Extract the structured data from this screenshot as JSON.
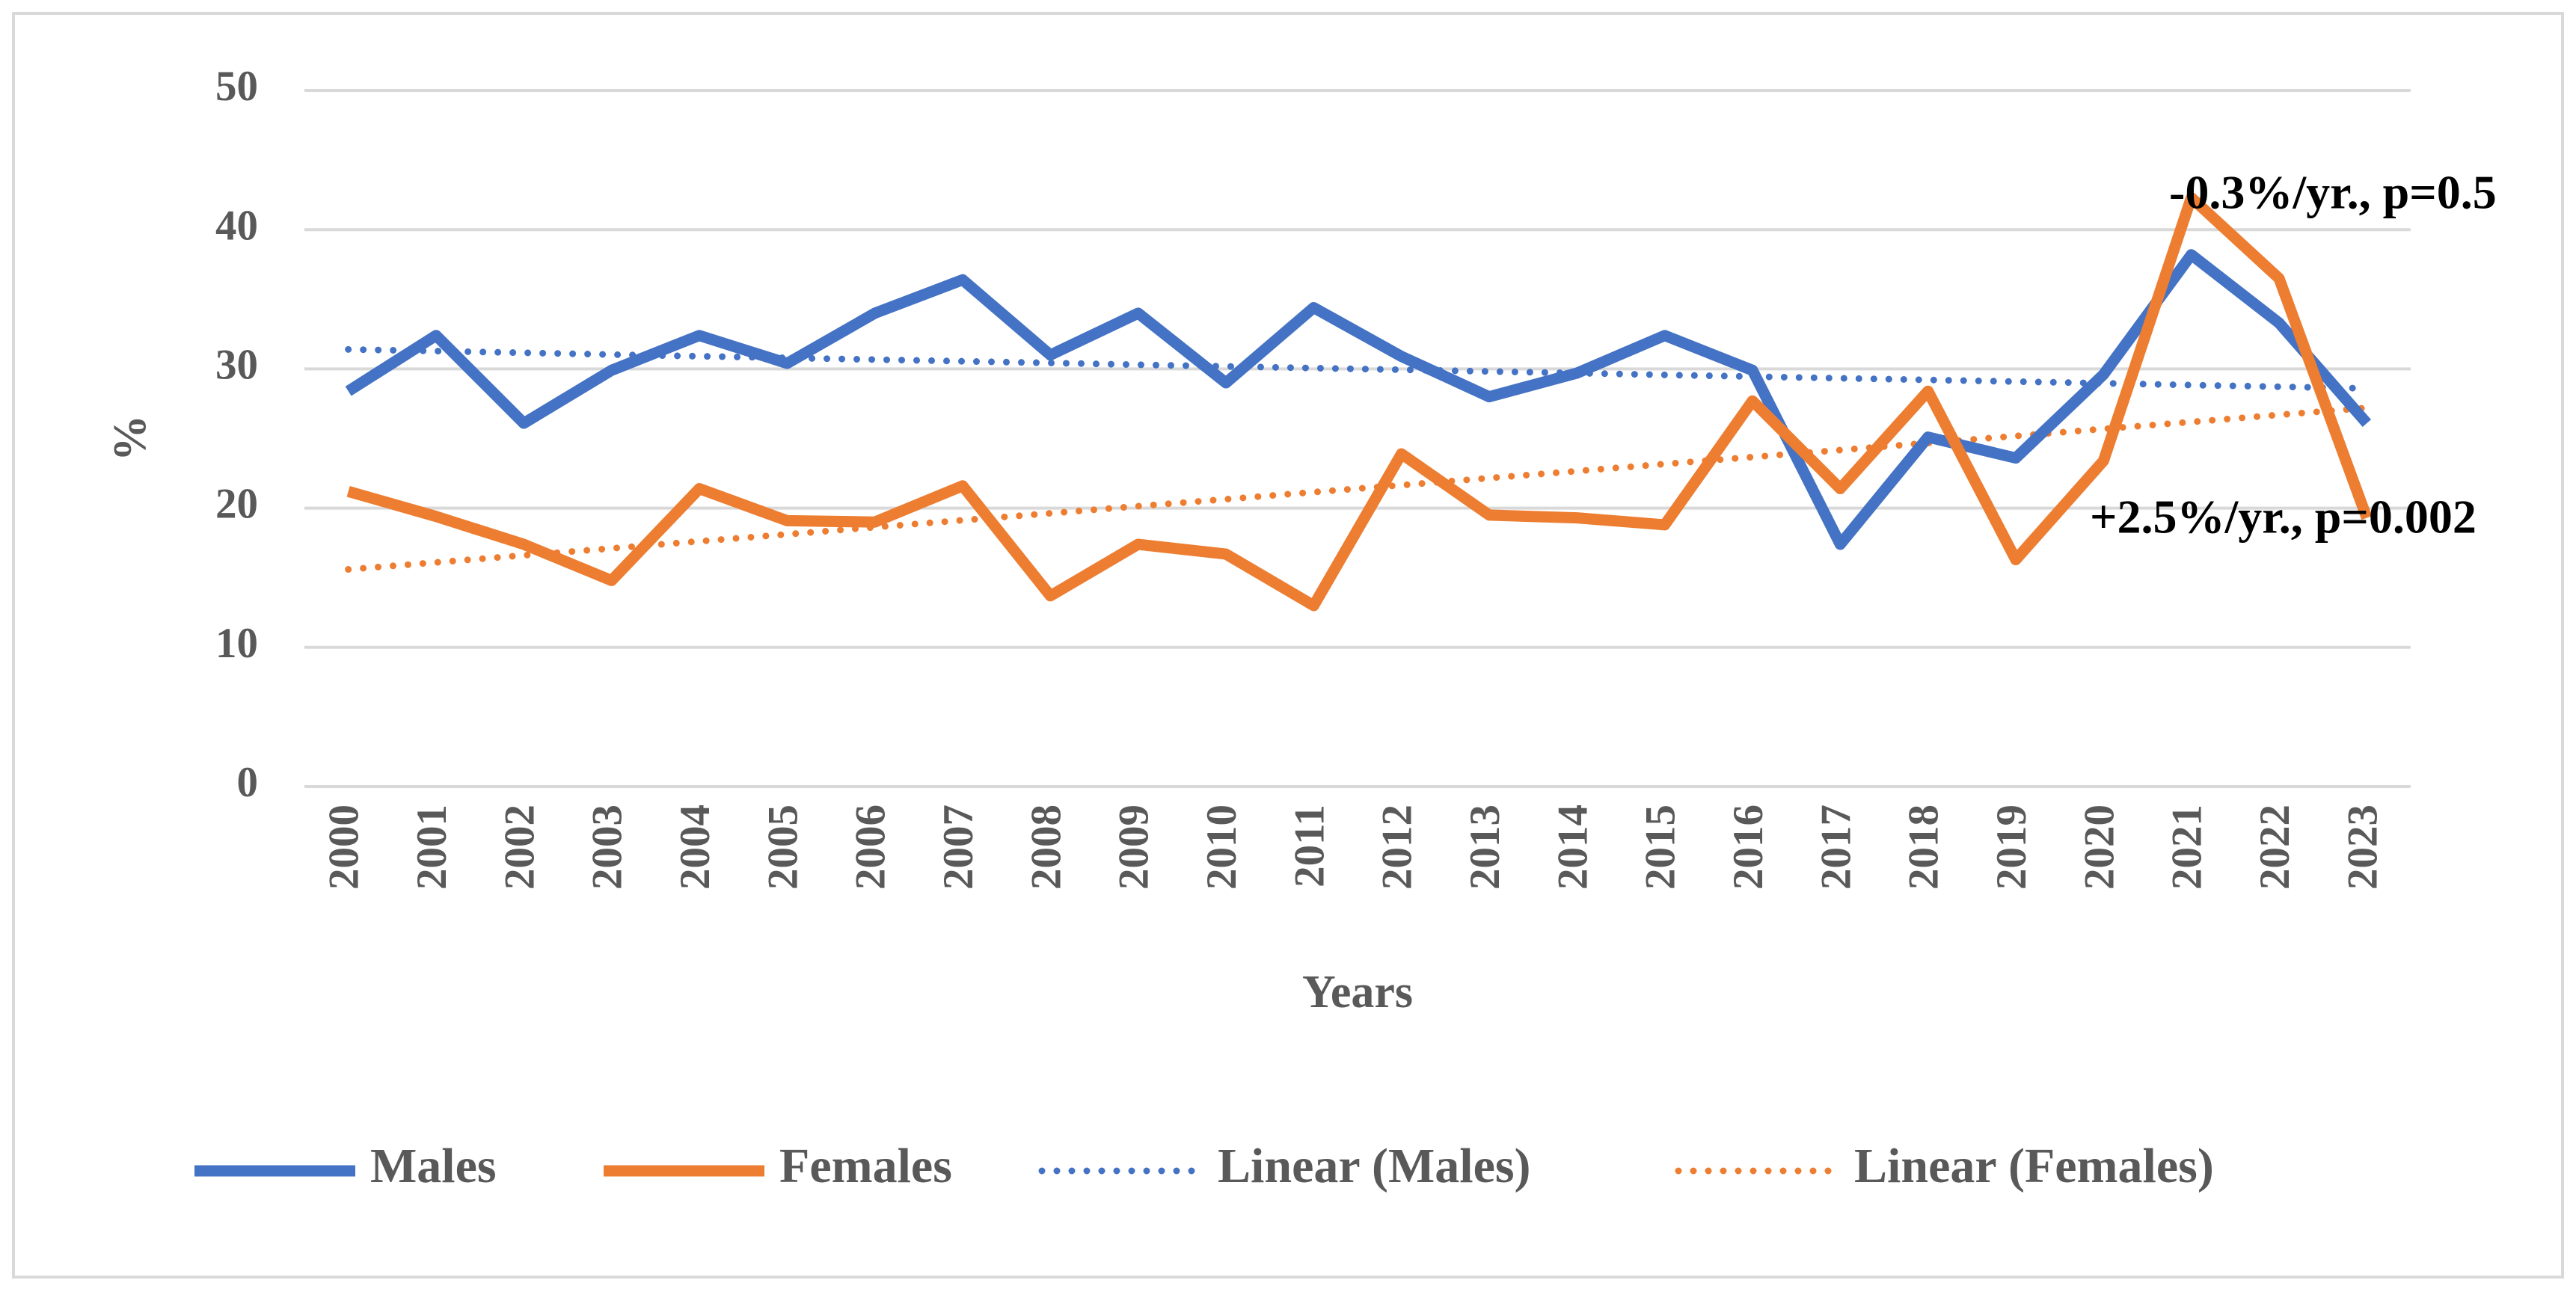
{
  "chart_data": {
    "type": "line",
    "x_label": "Years",
    "y_label": "%",
    "categories": [
      "2000",
      "2001",
      "2002",
      "2003",
      "2004",
      "2005",
      "2006",
      "2007",
      "2008",
      "2009",
      "2010",
      "2011",
      "2012",
      "2013",
      "2014",
      "2015",
      "2016",
      "2017",
      "2018",
      "2019",
      "2020",
      "2021",
      "2022",
      "2023"
    ],
    "series": [
      {
        "name": "Males",
        "color": "#4472c4",
        "dash": "solid",
        "values": [
          28.4,
          32.4,
          26.1,
          29.9,
          32.4,
          30.4,
          34.0,
          36.4,
          31.0,
          34.0,
          29.0,
          34.4,
          30.9,
          28.0,
          29.7,
          32.4,
          29.9,
          17.4,
          25.1,
          23.6,
          29.6,
          38.2,
          33.3,
          26.1
        ]
      },
      {
        "name": "Females",
        "color": "#ed7d31",
        "dash": "solid",
        "values": [
          21.2,
          19.4,
          17.4,
          14.8,
          21.4,
          19.1,
          19.0,
          21.6,
          13.7,
          17.4,
          16.7,
          13.0,
          23.9,
          19.5,
          19.3,
          18.8,
          27.7,
          21.4,
          28.4,
          16.3,
          23.4,
          42.3,
          36.5,
          19.3
        ]
      },
      {
        "name": "Linear (Males)",
        "color": "#4472c4",
        "dash": "dotted",
        "values": [
          31.4,
          31.28,
          31.16,
          31.03,
          30.91,
          30.79,
          30.67,
          30.55,
          30.43,
          30.3,
          30.18,
          30.06,
          29.94,
          29.82,
          29.7,
          29.57,
          29.45,
          29.33,
          29.21,
          29.09,
          28.97,
          28.84,
          28.72,
          28.6
        ]
      },
      {
        "name": "Linear (Females)",
        "color": "#ed7d31",
        "dash": "dotted",
        "values": [
          15.6,
          16.1,
          16.61,
          17.11,
          17.62,
          18.12,
          18.63,
          19.13,
          19.63,
          20.14,
          20.64,
          21.15,
          21.65,
          22.16,
          22.66,
          23.17,
          23.67,
          24.17,
          24.68,
          25.18,
          25.69,
          26.19,
          26.7,
          27.2
        ]
      }
    ],
    "annotations": [
      "-0.3%/yr., p=0.5",
      "+2.5%/yr., p=0.002"
    ],
    "ylim": [
      0,
      50
    ],
    "yticks": [
      0,
      10,
      20,
      30,
      40,
      50
    ],
    "grid": true,
    "legend": "bottom"
  }
}
